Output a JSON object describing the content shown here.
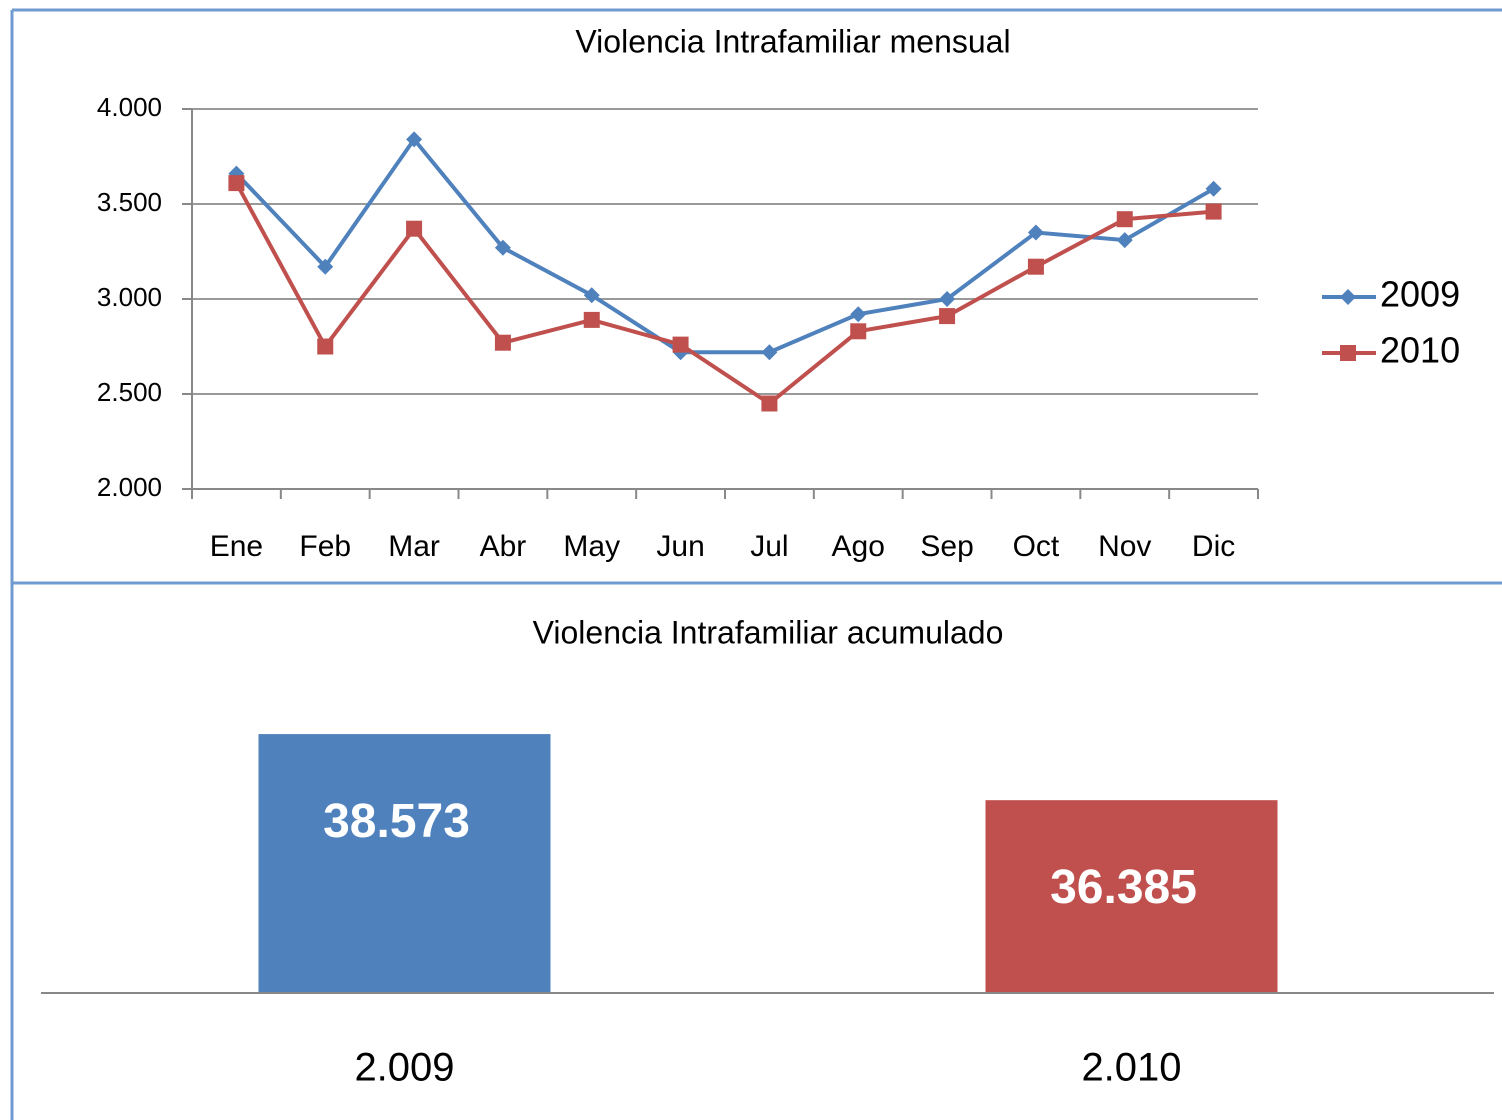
{
  "chart_data": [
    {
      "type": "line",
      "title": "Violencia Intrafamiliar mensual",
      "categories": [
        "Ene",
        "Feb",
        "Mar",
        "Abr",
        "May",
        "Jun",
        "Jul",
        "Ago",
        "Sep",
        "Oct",
        "Nov",
        "Dic"
      ],
      "series": [
        {
          "name": "2009",
          "color": "#4f81bd",
          "marker": "diamond",
          "values": [
            3660,
            3170,
            3840,
            3270,
            3020,
            2720,
            2720,
            2920,
            3000,
            3350,
            3310,
            3580
          ]
        },
        {
          "name": "2010",
          "color": "#c0504d",
          "marker": "square",
          "values": [
            3610,
            2750,
            3370,
            2770,
            2890,
            2760,
            2450,
            2830,
            2910,
            3170,
            3420,
            3460
          ]
        }
      ],
      "ylim": [
        2000,
        4000
      ],
      "yticks": [
        {
          "value": 2000,
          "label": "2.000"
        },
        {
          "value": 2500,
          "label": "2.500"
        },
        {
          "value": 3000,
          "label": "3.000"
        },
        {
          "value": 3500,
          "label": "3.500"
        },
        {
          "value": 4000,
          "label": "4.000"
        }
      ],
      "grid": true,
      "legend": "right"
    },
    {
      "type": "bar",
      "title": "Violencia Intrafamiliar acumulado",
      "categories": [
        "2.009",
        "2.010"
      ],
      "values": [
        38573,
        36385
      ],
      "value_labels": [
        "38.573",
        "36.385"
      ],
      "colors": [
        "#4f81bd",
        "#c0504d"
      ],
      "ylim": [
        30000,
        40000
      ]
    }
  ]
}
